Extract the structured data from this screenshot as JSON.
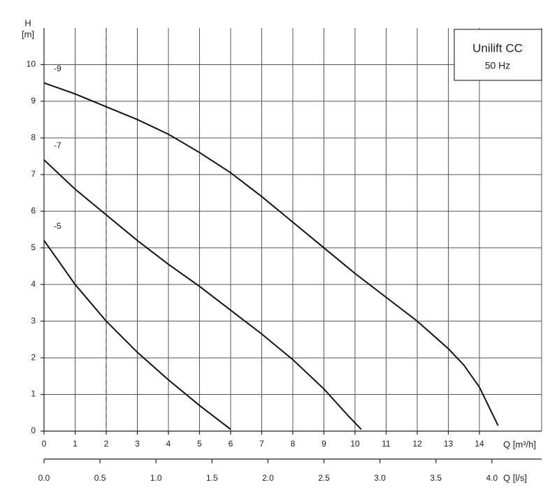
{
  "chart_data": {
    "type": "line",
    "legend_title": "Unilift CC",
    "legend_subtitle": "50 Hz",
    "y_label": "H",
    "y_unit": "[m]",
    "x_label": "Q [m³/h]",
    "x2_label": "Q [l/s]",
    "xlim": [
      0,
      16
    ],
    "xticks": [
      0,
      1,
      2,
      3,
      4,
      5,
      6,
      7,
      8,
      9,
      10,
      11,
      12,
      13,
      14
    ],
    "ylim": [
      0,
      11
    ],
    "yticks": [
      0,
      1,
      2,
      3,
      4,
      5,
      6,
      7,
      8,
      9,
      10
    ],
    "x2lim": [
      0,
      4.444
    ],
    "x2ticks": [
      {
        "value": 0,
        "label": "0.0"
      },
      {
        "value": 0.5,
        "label": "0.5"
      },
      {
        "value": 1,
        "label": "1.0"
      },
      {
        "value": 1.5,
        "label": "1.5"
      },
      {
        "value": 2,
        "label": "2.0"
      },
      {
        "value": 2.5,
        "label": "2.5"
      },
      {
        "value": 3,
        "label": "3.0"
      },
      {
        "value": 3.5,
        "label": "3.5"
      },
      {
        "value": 4,
        "label": "4.0"
      }
    ],
    "reference_line_x": 2,
    "grid": true,
    "series": [
      {
        "name": "-9",
        "color": "#111111",
        "x": [
          0,
          1,
          2,
          3,
          4,
          5,
          6,
          7,
          8,
          9,
          10,
          11,
          12,
          13,
          13.5,
          14,
          14.6
        ],
        "values": [
          9.5,
          9.2,
          8.85,
          8.5,
          8.1,
          7.6,
          7.05,
          6.4,
          5.7,
          5.0,
          4.3,
          3.65,
          3.0,
          2.25,
          1.8,
          1.2,
          0.15
        ]
      },
      {
        "name": "-7",
        "color": "#111111",
        "x": [
          0,
          1,
          2,
          3,
          4,
          5,
          6,
          7,
          8,
          9,
          9.8,
          10.2
        ],
        "values": [
          7.4,
          6.6,
          5.9,
          5.2,
          4.55,
          3.95,
          3.3,
          2.65,
          1.95,
          1.15,
          0.4,
          0.05
        ]
      },
      {
        "name": "-5",
        "color": "#111111",
        "x": [
          0,
          0.5,
          1,
          2,
          3,
          4,
          5,
          6
        ],
        "values": [
          5.2,
          4.6,
          4.0,
          3.0,
          2.15,
          1.4,
          0.7,
          0.05
        ]
      }
    ]
  }
}
